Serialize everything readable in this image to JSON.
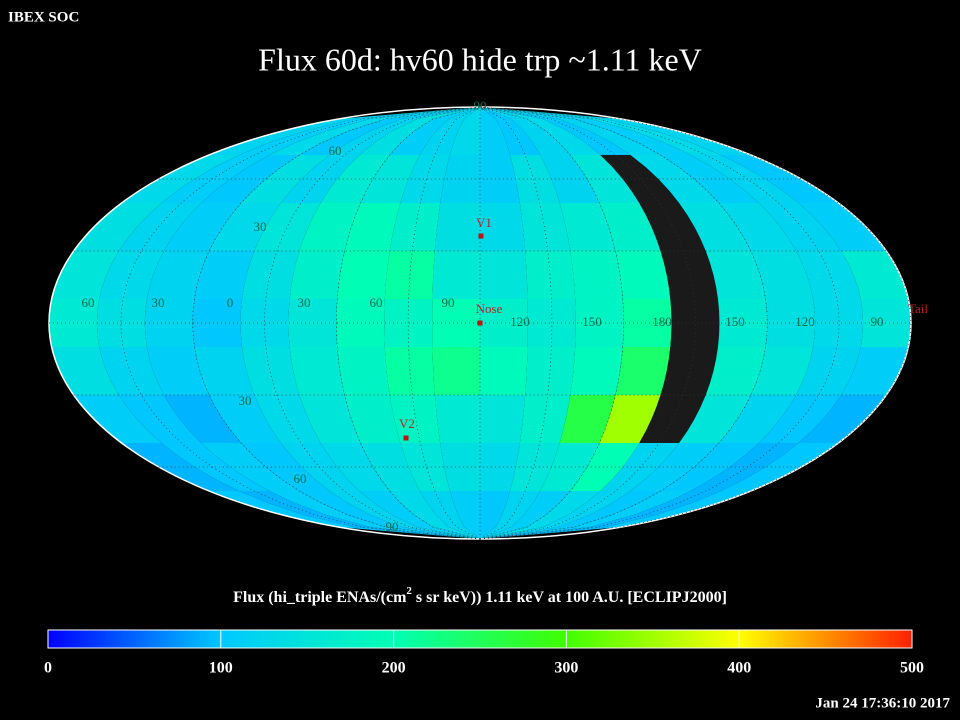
{
  "header": {
    "source": "IBEX SOC",
    "title": "Flux   60d: hv60 hide trp ~1.11 keV",
    "timestamp": "Jan 24 17:36:10 2017"
  },
  "map": {
    "flux": [
      [
        120,
        110,
        130,
        100,
        120,
        140,
        110,
        120,
        130,
        110,
        100,
        120,
        130,
        100,
        120,
        110,
        130,
        120
      ],
      [
        130,
        110,
        100,
        140,
        120,
        160,
        150,
        130,
        120,
        110,
        140,
        120,
        150,
        null,
        130,
        110,
        120,
        100
      ],
      [
        140,
        120,
        110,
        130,
        150,
        180,
        190,
        170,
        140,
        130,
        150,
        160,
        170,
        null,
        140,
        130,
        120,
        110
      ],
      [
        150,
        130,
        120,
        110,
        140,
        170,
        200,
        210,
        160,
        150,
        170,
        180,
        190,
        null,
        150,
        140,
        130,
        160
      ],
      [
        160,
        140,
        120,
        100,
        130,
        150,
        190,
        180,
        200,
        170,
        160,
        180,
        210,
        null,
        160,
        140,
        130,
        150
      ],
      [
        140,
        120,
        110,
        120,
        140,
        160,
        180,
        210,
        220,
        190,
        170,
        190,
        240,
        null,
        170,
        150,
        120,
        110
      ],
      [
        110,
        100,
        90,
        110,
        130,
        150,
        170,
        180,
        160,
        150,
        170,
        260,
        350,
        null,
        150,
        120,
        100,
        90
      ],
      [
        90,
        100,
        110,
        100,
        120,
        130,
        140,
        150,
        140,
        130,
        150,
        160,
        200,
        120,
        110,
        100,
        90,
        100
      ],
      [
        100,
        90,
        110,
        100,
        120,
        110,
        130,
        120,
        110,
        100,
        120,
        110,
        130,
        120,
        100,
        110,
        90,
        100
      ]
    ],
    "equator_labels": [
      "60",
      "30",
      "0",
      "30",
      "60",
      "90",
      "120",
      "150",
      "180",
      "150",
      "120",
      "90"
    ],
    "latitude_labels": [
      "90",
      "60",
      "30",
      "30",
      "60",
      "90"
    ],
    "markers": [
      "V1",
      "Nose",
      "V2",
      "Tail"
    ]
  },
  "colorbar": {
    "label_start": "Flux (hi_triple ENAs/(cm",
    "label_sup": "2",
    "label_end": " s sr keV))  1.11 keV at 100 A.U. [ECLIPJ2000]",
    "lim": [
      0,
      500
    ],
    "ticks": [
      0,
      100,
      200,
      300,
      400,
      500
    ],
    "colors": [
      "#0000ff",
      "#00c8ff",
      "#00ffb4",
      "#40ff00",
      "#ffff00",
      "#ff2000"
    ]
  }
}
